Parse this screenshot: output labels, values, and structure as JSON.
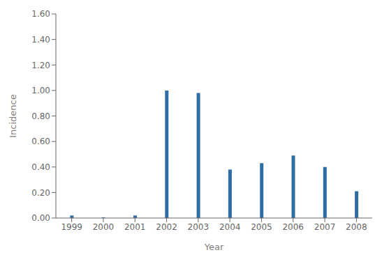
{
  "chart_data": {
    "type": "bar",
    "xlabel": "Year",
    "ylabel": "Incidence",
    "categories": [
      "1999",
      "2000",
      "2001",
      "2002",
      "2003",
      "2004",
      "2005",
      "2006",
      "2007",
      "2008"
    ],
    "values": [
      0.02,
      0.005,
      0.02,
      1.0,
      0.98,
      0.38,
      0.43,
      0.49,
      0.4,
      0.21
    ],
    "color": "#2E6DA4",
    "ylim": [
      0.0,
      1.6
    ],
    "yticks": [
      {
        "value": 0.0,
        "label": "0.00"
      },
      {
        "value": 0.2,
        "label": "0.20"
      },
      {
        "value": 0.4,
        "label": "0.40"
      },
      {
        "value": 0.6,
        "label": "0.60"
      },
      {
        "value": 0.8,
        "label": "0.80"
      },
      {
        "value": 1.0,
        "label": "1.00"
      },
      {
        "value": 1.2,
        "label": "1.20"
      },
      {
        "value": 1.4,
        "label": "1.40"
      },
      {
        "value": 1.6,
        "label": "1.60"
      }
    ],
    "grid": false
  }
}
